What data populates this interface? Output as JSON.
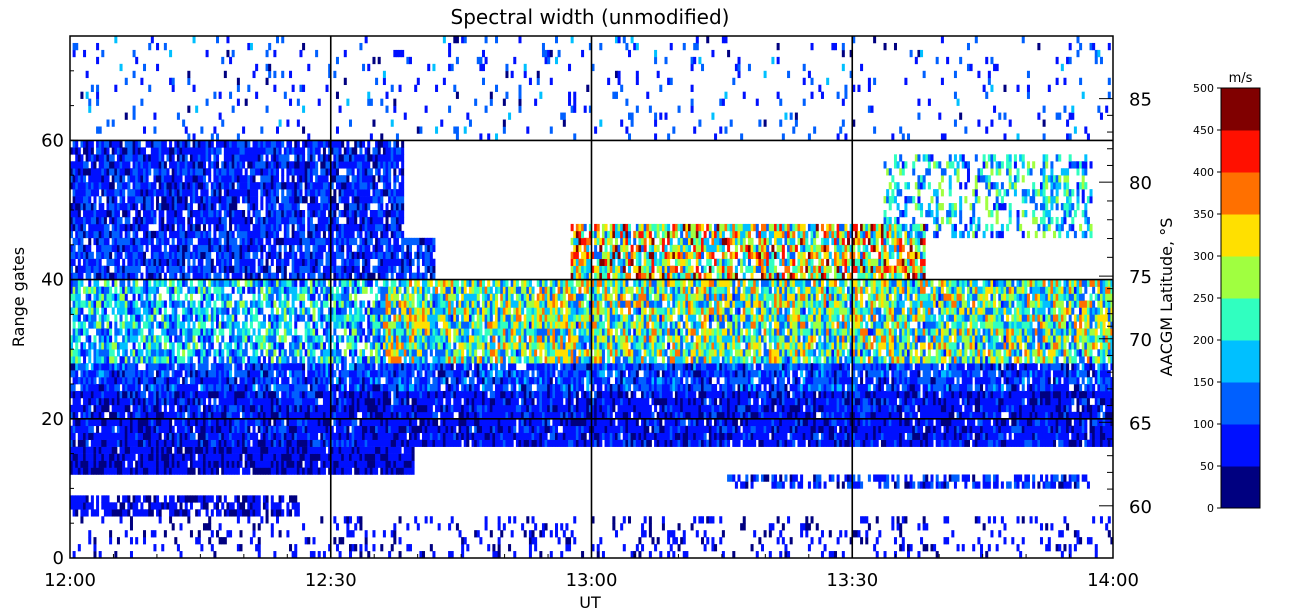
{
  "chart_data": {
    "type": "heatmap",
    "title": "Spectral width (unmodified)",
    "xlabel": "UT",
    "ylabel": "Range gates",
    "y2label": "AACGM Latitude, °S",
    "x_ticks": [
      "12:00",
      "12:30",
      "13:00",
      "13:30",
      "14:00"
    ],
    "xlim_minutes_ut": [
      720,
      840
    ],
    "ylim": [
      0,
      75
    ],
    "y_ticks": [
      "0",
      "20",
      "40",
      "60"
    ],
    "y2_ticks": [
      "60",
      "65",
      "70",
      "75",
      "80",
      "85"
    ],
    "y2_tick_gates": [
      7.5,
      19.5,
      31.5,
      40.5,
      54,
      66
    ],
    "grid": true,
    "colorbar": {
      "unit": "m/s",
      "ticks": [
        "0",
        "50",
        "100",
        "150",
        "200",
        "250",
        "300",
        "350",
        "400",
        "450",
        "500"
      ],
      "colors": [
        "#000080",
        "#0010ff",
        "#0060ff",
        "#00c0ff",
        "#30ffc0",
        "#a0ff40",
        "#ffe000",
        "#ff7000",
        "#ff1000",
        "#800000"
      ]
    },
    "bands": [
      {
        "gate_min": 0,
        "gate_max": 6,
        "t_start": 0.0,
        "t_end": 1.0,
        "value": 60,
        "density": 0.18
      },
      {
        "gate_min": 6,
        "gate_max": 9,
        "t_start": 0.0,
        "t_end": 0.22,
        "value": 60,
        "density": 0.7
      },
      {
        "gate_min": 10,
        "gate_max": 12,
        "t_start": 0.63,
        "t_end": 0.98,
        "value": 80,
        "density": 0.55
      },
      {
        "gate_min": 12,
        "gate_max": 16,
        "t_start": 0.0,
        "t_end": 0.33,
        "value": 60,
        "density": 0.95
      },
      {
        "gate_min": 16,
        "gate_max": 24,
        "t_start": 0.0,
        "t_end": 1.0,
        "value": 70,
        "density": 0.95
      },
      {
        "gate_min": 24,
        "gate_max": 28,
        "t_start": 0.0,
        "t_end": 1.0,
        "value": 100,
        "density": 0.9
      },
      {
        "gate_min": 28,
        "gate_max": 40,
        "t_start": 0.0,
        "t_end": 0.3,
        "value": 170,
        "density": 0.75
      },
      {
        "gate_min": 28,
        "gate_max": 40,
        "t_start": 0.3,
        "t_end": 1.0,
        "value": 240,
        "density": 0.9
      },
      {
        "gate_min": 40,
        "gate_max": 46,
        "t_start": 0.0,
        "t_end": 0.35,
        "value": 90,
        "density": 0.85
      },
      {
        "gate_min": 40,
        "gate_max": 48,
        "t_start": 0.48,
        "t_end": 0.82,
        "value": 300,
        "density": 0.8
      },
      {
        "gate_min": 46,
        "gate_max": 60,
        "t_start": 0.0,
        "t_end": 0.32,
        "value": 80,
        "density": 0.85
      },
      {
        "gate_min": 46,
        "gate_max": 58,
        "t_start": 0.78,
        "t_end": 0.98,
        "value": 180,
        "density": 0.4
      },
      {
        "gate_min": 60,
        "gate_max": 75,
        "t_start": 0.0,
        "t_end": 1.0,
        "value": 100,
        "density": 0.08
      }
    ]
  }
}
